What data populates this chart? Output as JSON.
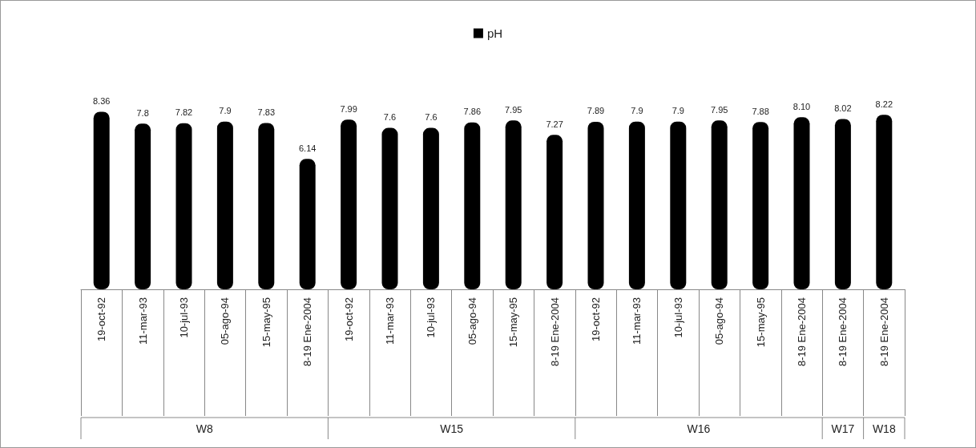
{
  "chart_data": {
    "type": "bar",
    "categories": [
      "19-oct-92",
      "11-mar-93",
      "10-jul-93",
      "05-ago-94",
      "15-may-95",
      "8-19 Ene-2004",
      "19-oct-92",
      "11-mar-93",
      "10-jul-93",
      "05-ago-94",
      "15-may-95",
      "8-19 Ene-2004",
      "19-oct-92",
      "11-mar-93",
      "10-jul-93",
      "05-ago-94",
      "15-may-95",
      "8-19 Ene-2004",
      "8-19 Ene-2004",
      "8-19 Ene-2004"
    ],
    "series": [
      {
        "name": "pH",
        "color": "#000000",
        "values": [
          8.36,
          7.8,
          7.82,
          7.9,
          7.83,
          6.14,
          7.99,
          7.6,
          7.6,
          7.86,
          7.95,
          7.27,
          7.89,
          7.9,
          7.9,
          7.95,
          7.88,
          8.1,
          8.02,
          8.22
        ],
        "value_labels": [
          "8.36",
          "7.8",
          "7.82",
          "7.9",
          "7.83",
          "6.14",
          "7.99",
          "7.6",
          "7.6",
          "7.86",
          "7.95",
          "7.27",
          "7.89",
          "7.9",
          "7.9",
          "7.95",
          "7.88",
          "8.10",
          "8.02",
          "8.22"
        ]
      }
    ],
    "annotations": [
      "W8",
      "W15",
      "W16",
      "W17",
      "W18"
    ],
    "legend": "top",
    "grid": false
  }
}
